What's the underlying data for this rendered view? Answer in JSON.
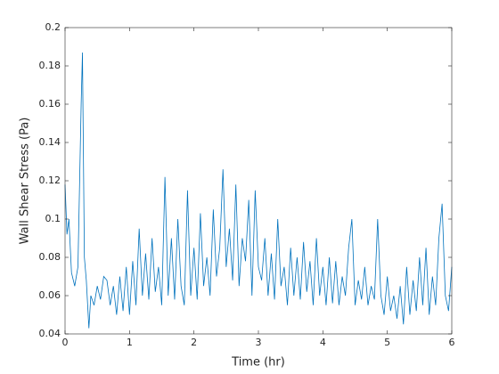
{
  "chart_data": {
    "type": "line",
    "x_label": "Time (hr)",
    "y_label": "Wall Shear Stress (Pa)",
    "xlim": [
      0,
      6
    ],
    "ylim": [
      0.04,
      0.2
    ],
    "xticks": [
      0,
      1,
      2,
      3,
      4,
      5,
      6
    ],
    "yticks": [
      0.04,
      0.06,
      0.08,
      0.1,
      0.12,
      0.14,
      0.16,
      0.18,
      0.2
    ],
    "x": [
      0,
      0.03,
      0.06,
      0.1,
      0.15,
      0.2,
      0.25,
      0.27,
      0.3,
      0.33,
      0.37,
      0.4,
      0.45,
      0.5,
      0.55,
      0.6,
      0.65,
      0.7,
      0.75,
      0.8,
      0.85,
      0.9,
      0.95,
      1.0,
      1.05,
      1.1,
      1.15,
      1.2,
      1.25,
      1.3,
      1.35,
      1.4,
      1.45,
      1.5,
      1.55,
      1.6,
      1.65,
      1.7,
      1.75,
      1.8,
      1.85,
      1.9,
      1.95,
      2.0,
      2.05,
      2.1,
      2.15,
      2.2,
      2.25,
      2.3,
      2.35,
      2.4,
      2.45,
      2.5,
      2.55,
      2.6,
      2.65,
      2.7,
      2.75,
      2.8,
      2.85,
      2.9,
      2.95,
      3.0,
      3.05,
      3.1,
      3.15,
      3.2,
      3.25,
      3.3,
      3.35,
      3.4,
      3.45,
      3.5,
      3.55,
      3.6,
      3.65,
      3.7,
      3.75,
      3.8,
      3.85,
      3.9,
      3.95,
      4.0,
      4.05,
      4.1,
      4.15,
      4.2,
      4.25,
      4.3,
      4.35,
      4.4,
      4.45,
      4.5,
      4.55,
      4.6,
      4.65,
      4.7,
      4.75,
      4.8,
      4.85,
      4.9,
      4.95,
      5.0,
      5.05,
      5.1,
      5.15,
      5.2,
      5.25,
      5.3,
      5.35,
      5.4,
      5.45,
      5.5,
      5.55,
      5.6,
      5.65,
      5.7,
      5.75,
      5.8,
      5.85,
      5.9,
      5.95,
      6.0
    ],
    "series": [
      {
        "color": "#0072bd",
        "values": [
          0.118,
          0.092,
          0.1,
          0.072,
          0.065,
          0.075,
          0.16,
          0.187,
          0.08,
          0.068,
          0.043,
          0.06,
          0.055,
          0.065,
          0.058,
          0.07,
          0.068,
          0.055,
          0.065,
          0.05,
          0.07,
          0.052,
          0.075,
          0.05,
          0.078,
          0.055,
          0.095,
          0.06,
          0.082,
          0.058,
          0.09,
          0.062,
          0.075,
          0.055,
          0.122,
          0.06,
          0.09,
          0.058,
          0.1,
          0.065,
          0.055,
          0.115,
          0.06,
          0.085,
          0.058,
          0.103,
          0.065,
          0.08,
          0.06,
          0.105,
          0.07,
          0.085,
          0.126,
          0.075,
          0.095,
          0.068,
          0.118,
          0.065,
          0.09,
          0.078,
          0.11,
          0.06,
          0.115,
          0.075,
          0.068,
          0.09,
          0.06,
          0.082,
          0.058,
          0.1,
          0.065,
          0.075,
          0.055,
          0.085,
          0.06,
          0.08,
          0.058,
          0.088,
          0.062,
          0.078,
          0.055,
          0.09,
          0.06,
          0.075,
          0.055,
          0.08,
          0.056,
          0.078,
          0.055,
          0.07,
          0.06,
          0.085,
          0.1,
          0.055,
          0.068,
          0.058,
          0.075,
          0.055,
          0.065,
          0.058,
          0.1,
          0.06,
          0.05,
          0.07,
          0.052,
          0.06,
          0.048,
          0.065,
          0.045,
          0.075,
          0.05,
          0.068,
          0.052,
          0.08,
          0.055,
          0.085,
          0.05,
          0.07,
          0.055,
          0.09,
          0.108,
          0.06,
          0.052,
          0.075
        ]
      }
    ]
  }
}
